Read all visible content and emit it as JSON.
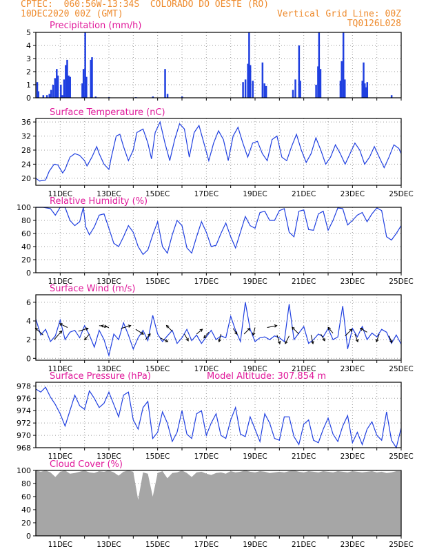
{
  "header": {
    "line1": "CPTEC:  060:56W-13:34S  COLORADO DO OESTE (RO)",
    "date": "10DEC2020 00Z (GMT)",
    "grid_note": "Vertical Grid Line: 00Z",
    "code": "TQ0126L028"
  },
  "colors": {
    "header": "#ee8a2c",
    "title": "#e0189a",
    "series": "#1f3fe0",
    "cloud": "#a6a6a6",
    "wind_arrow": "#000000",
    "grid": "#9a9a9a"
  },
  "x_tick_labels": [
    "11DEC",
    "13DEC",
    "15DEC",
    "17DEC",
    "19DEC",
    "21DEC",
    "23DEC",
    "25DEC"
  ],
  "chart_data": [
    {
      "id": "precip",
      "type": "bar",
      "title": "Precipitation (mm/h)",
      "ylim": [
        0,
        5
      ],
      "yticks": [
        0,
        1,
        2,
        3,
        4,
        5
      ],
      "grid": true,
      "x_unit": "days from 10DEC2020 00Z",
      "xlim": [
        0,
        15
      ],
      "points": [
        [
          0.05,
          1.2
        ],
        [
          0.1,
          0.5
        ],
        [
          0.3,
          0.2
        ],
        [
          0.45,
          0.2
        ],
        [
          0.55,
          0.3
        ],
        [
          0.62,
          0.6
        ],
        [
          0.7,
          1.0
        ],
        [
          0.78,
          1.5
        ],
        [
          0.85,
          2.2
        ],
        [
          0.9,
          1.7
        ],
        [
          1.02,
          1.0
        ],
        [
          1.08,
          0.2
        ],
        [
          1.15,
          1.4
        ],
        [
          1.22,
          2.5
        ],
        [
          1.28,
          2.9
        ],
        [
          1.34,
          1.7
        ],
        [
          1.4,
          1.6
        ],
        [
          1.9,
          1.1
        ],
        [
          1.95,
          2.2
        ],
        [
          2.02,
          5.0
        ],
        [
          2.07,
          1.6
        ],
        [
          2.25,
          2.9
        ],
        [
          2.3,
          3.1
        ],
        [
          2.45,
          0.1
        ],
        [
          3.0,
          0.05
        ],
        [
          4.1,
          0.05
        ],
        [
          4.8,
          0.1
        ],
        [
          5.3,
          2.2
        ],
        [
          5.4,
          0.3
        ],
        [
          6.0,
          0.1
        ],
        [
          8.5,
          1.2
        ],
        [
          8.6,
          1.4
        ],
        [
          8.7,
          2.6
        ],
        [
          8.75,
          5.0
        ],
        [
          8.8,
          2.5
        ],
        [
          8.9,
          1.3
        ],
        [
          9.3,
          2.7
        ],
        [
          9.38,
          1.1
        ],
        [
          9.45,
          0.9
        ],
        [
          10.55,
          0.6
        ],
        [
          10.65,
          1.4
        ],
        [
          10.8,
          4.0
        ],
        [
          10.85,
          1.3
        ],
        [
          11.5,
          1.0
        ],
        [
          11.58,
          2.4
        ],
        [
          11.62,
          5.0
        ],
        [
          11.68,
          2.2
        ],
        [
          12.5,
          1.3
        ],
        [
          12.55,
          2.8
        ],
        [
          12.62,
          5.0
        ],
        [
          12.68,
          1.4
        ],
        [
          13.4,
          1.3
        ],
        [
          13.45,
          2.7
        ],
        [
          13.5,
          1.1
        ],
        [
          13.55,
          0.8
        ],
        [
          13.6,
          1.2
        ],
        [
          14.6,
          0.2
        ]
      ]
    },
    {
      "id": "temp",
      "type": "line",
      "title": "Surface Temperature (nC)",
      "ylim": [
        18,
        37
      ],
      "yticks": [
        20,
        24,
        28,
        32,
        36
      ],
      "grid": true,
      "x": [
        0,
        0.15,
        0.4,
        0.55,
        0.75,
        0.9,
        1.1,
        1.2,
        1.4,
        1.6,
        1.8,
        2.0,
        2.1,
        2.3,
        2.5,
        2.6,
        2.8,
        3.0,
        3.1,
        3.3,
        3.45,
        3.6,
        3.8,
        4.0,
        4.15,
        4.4,
        4.6,
        4.75,
        4.9,
        5.1,
        5.3,
        5.5,
        5.7,
        5.9,
        6.1,
        6.3,
        6.5,
        6.7,
        6.9,
        7.1,
        7.3,
        7.5,
        7.7,
        7.9,
        8.1,
        8.3,
        8.5,
        8.7,
        8.9,
        9.1,
        9.3,
        9.5,
        9.7,
        9.9,
        10.1,
        10.3,
        10.5,
        10.7,
        10.9,
        11.1,
        11.3,
        11.5,
        11.7,
        11.9,
        12.1,
        12.3,
        12.5,
        12.7,
        12.9,
        13.1,
        13.3,
        13.5,
        13.7,
        13.9,
        14.1,
        14.3,
        14.5,
        14.7,
        14.9,
        15.0
      ],
      "values": [
        20,
        19.2,
        19.5,
        22,
        24,
        23.8,
        21.5,
        22.5,
        26,
        27,
        26.5,
        25,
        23.5,
        26,
        29,
        27,
        24,
        22.5,
        26,
        32,
        32.5,
        29,
        25,
        28,
        33,
        34,
        30,
        25.5,
        33,
        36,
        30,
        25,
        31,
        35.5,
        34,
        26,
        33,
        35,
        30,
        25,
        30,
        33.5,
        31,
        25,
        32,
        34.5,
        30,
        26,
        30,
        30.5,
        27,
        25,
        31,
        32,
        26,
        25,
        29,
        32.5,
        28,
        24.5,
        27,
        31.5,
        28,
        24,
        26,
        29.5,
        27,
        24,
        27,
        30,
        28,
        24,
        26,
        29,
        26,
        23,
        26,
        29.5,
        28.5,
        27
      ]
    },
    {
      "id": "rh",
      "type": "line",
      "title": "Relative Humidity (%)",
      "ylim": [
        0,
        100
      ],
      "yticks": [
        0,
        20,
        40,
        60,
        80,
        100
      ],
      "grid": true,
      "x": [
        0,
        0.3,
        0.6,
        0.8,
        1.0,
        1.2,
        1.4,
        1.6,
        1.8,
        1.95,
        2.05,
        2.2,
        2.4,
        2.6,
        2.8,
        3.0,
        3.2,
        3.4,
        3.6,
        3.8,
        4.0,
        4.2,
        4.4,
        4.6,
        4.8,
        5.0,
        5.2,
        5.4,
        5.6,
        5.8,
        6.0,
        6.2,
        6.4,
        6.6,
        6.8,
        7.0,
        7.2,
        7.4,
        7.6,
        7.8,
        8.0,
        8.2,
        8.4,
        8.6,
        8.8,
        9.0,
        9.2,
        9.4,
        9.6,
        9.8,
        10.0,
        10.2,
        10.4,
        10.6,
        10.8,
        11.0,
        11.2,
        11.4,
        11.6,
        11.8,
        12.0,
        12.2,
        12.4,
        12.6,
        12.8,
        13.0,
        13.2,
        13.4,
        13.6,
        13.8,
        14.0,
        14.2,
        14.4,
        14.6,
        14.8,
        15.0
      ],
      "values": [
        100,
        100,
        98,
        88,
        100,
        100,
        80,
        72,
        78,
        100,
        70,
        58,
        70,
        88,
        90,
        68,
        45,
        40,
        55,
        72,
        62,
        40,
        28,
        35,
        58,
        78,
        40,
        30,
        58,
        80,
        72,
        38,
        30,
        55,
        78,
        62,
        40,
        42,
        60,
        76,
        55,
        38,
        62,
        86,
        72,
        68,
        92,
        94,
        80,
        80,
        95,
        98,
        62,
        55,
        94,
        96,
        66,
        65,
        90,
        94,
        65,
        80,
        99,
        98,
        73,
        80,
        88,
        92,
        78,
        90,
        99,
        95,
        55,
        50,
        60,
        72
      ]
    },
    {
      "id": "wind",
      "type": "line",
      "title": "Surface Wind (m/s)",
      "ylim": [
        -0.2,
        6.8
      ],
      "yticks": [
        0,
        2,
        4,
        6
      ],
      "grid": true,
      "x": [
        0,
        0.2,
        0.4,
        0.6,
        0.8,
        1.0,
        1.2,
        1.4,
        1.6,
        1.8,
        2.0,
        2.2,
        2.4,
        2.6,
        2.8,
        3.0,
        3.2,
        3.4,
        3.6,
        3.8,
        4.0,
        4.2,
        4.4,
        4.6,
        4.8,
        5.0,
        5.2,
        5.4,
        5.6,
        5.8,
        6.0,
        6.2,
        6.4,
        6.6,
        6.8,
        7.0,
        7.2,
        7.4,
        7.6,
        7.8,
        8.0,
        8.2,
        8.4,
        8.6,
        8.8,
        9.0,
        9.2,
        9.4,
        9.6,
        9.8,
        10.0,
        10.2,
        10.4,
        10.6,
        10.8,
        11.0,
        11.2,
        11.4,
        11.6,
        11.8,
        12.0,
        12.2,
        12.4,
        12.6,
        12.8,
        13.0,
        13.2,
        13.4,
        13.6,
        13.8,
        14.0,
        14.2,
        14.4,
        14.6,
        14.8,
        15.0
      ],
      "values": [
        4.2,
        2.5,
        3.1,
        1.8,
        2.4,
        4.1,
        2.0,
        2.8,
        3.0,
        2.2,
        3.5,
        2.5,
        1.2,
        3.0,
        2.0,
        0.3,
        2.6,
        2.0,
        3.8,
        2.5,
        1.0,
        2.2,
        3.0,
        1.9,
        4.6,
        2.6,
        1.8,
        2.4,
        3.0,
        1.6,
        2.2,
        3.1,
        1.9,
        2.5,
        1.6,
        2.3,
        3.0,
        2.0,
        2.4,
        2.2,
        4.5,
        3.0,
        1.8,
        6.0,
        3.1,
        1.8,
        2.2,
        2.3,
        2.0,
        2.4,
        2.2,
        1.8,
        5.8,
        2.0,
        2.7,
        3.4,
        1.6,
        2.0,
        2.6,
        2.3,
        3.2,
        2.0,
        2.3,
        5.6,
        1.0,
        3.2,
        2.3,
        3.4,
        2.0,
        2.7,
        2.3,
        3.1,
        2.8,
        1.6,
        2.5,
        1.5
      ],
      "arrows": [
        [
          0.3,
          2.5,
          -0.8,
          0.7
        ],
        [
          0.75,
          2.0,
          0.8,
          0.9
        ],
        [
          1.3,
          3.3,
          -0.8,
          0.4
        ],
        [
          1.75,
          2.9,
          1.0,
          0.3
        ],
        [
          2.2,
          2.6,
          -0.5,
          -0.6
        ],
        [
          2.6,
          3.5,
          0.8,
          -0.1
        ],
        [
          3.0,
          3.3,
          -0.8,
          0.2
        ],
        [
          3.5,
          3.2,
          1.0,
          0.3
        ],
        [
          4.1,
          3.1,
          0.8,
          -0.5
        ],
        [
          4.5,
          2.0,
          0.5,
          0.6
        ],
        [
          5.1,
          2.2,
          0.8,
          -0.4
        ],
        [
          5.6,
          2.9,
          -0.6,
          0.6
        ],
        [
          6.1,
          2.6,
          0.4,
          -0.7
        ],
        [
          6.6,
          2.6,
          0.6,
          0.5
        ],
        [
          7.1,
          2.8,
          -0.5,
          -0.6
        ],
        [
          7.6,
          2.6,
          -0.2,
          -0.8
        ],
        [
          8.1,
          3.2,
          0.4,
          -0.6
        ],
        [
          8.55,
          2.6,
          0.6,
          0.6
        ],
        [
          9.0,
          3.3,
          -0.2,
          -0.8
        ],
        [
          9.5,
          3.3,
          1.0,
          0.2
        ],
        [
          9.9,
          2.5,
          0.3,
          -0.9
        ],
        [
          10.4,
          2.4,
          -0.4,
          -0.8
        ],
        [
          10.8,
          2.6,
          -0.7,
          0.7
        ],
        [
          11.3,
          2.5,
          0.2,
          -0.9
        ],
        [
          11.7,
          2.6,
          0.4,
          -0.7
        ],
        [
          12.2,
          2.7,
          -0.5,
          0.6
        ],
        [
          12.7,
          2.4,
          0.7,
          0.7
        ],
        [
          13.1,
          2.6,
          0.3,
          -0.8
        ],
        [
          13.6,
          2.8,
          -0.7,
          0.4
        ],
        [
          14.1,
          2.6,
          -0.3,
          -0.8
        ],
        [
          14.5,
          2.4,
          0.3,
          -0.7
        ]
      ]
    },
    {
      "id": "pressure",
      "type": "line",
      "title": "Surface Pressure (hPa)",
      "annotation": "Model Altitude: 307.854 m",
      "ylim": [
        968,
        978.6
      ],
      "yticks": [
        968,
        970,
        972,
        974,
        976,
        978
      ],
      "grid": true,
      "x": [
        0,
        0.2,
        0.4,
        0.6,
        0.8,
        1.0,
        1.2,
        1.4,
        1.6,
        1.8,
        2.0,
        2.2,
        2.4,
        2.6,
        2.8,
        3.0,
        3.2,
        3.4,
        3.6,
        3.8,
        4.0,
        4.2,
        4.4,
        4.6,
        4.8,
        5.0,
        5.2,
        5.4,
        5.6,
        5.8,
        6.0,
        6.2,
        6.4,
        6.6,
        6.8,
        7.0,
        7.2,
        7.4,
        7.6,
        7.8,
        8.0,
        8.2,
        8.4,
        8.6,
        8.8,
        9.0,
        9.2,
        9.4,
        9.6,
        9.8,
        10.0,
        10.2,
        10.4,
        10.6,
        10.8,
        11.0,
        11.2,
        11.4,
        11.6,
        11.8,
        12.0,
        12.2,
        12.4,
        12.6,
        12.8,
        13.0,
        13.2,
        13.4,
        13.6,
        13.8,
        14.0,
        14.2,
        14.4,
        14.6,
        14.8,
        15.0
      ],
      "values": [
        977.5,
        977.0,
        977.8,
        976.2,
        975.0,
        973.5,
        971.5,
        974.0,
        976.5,
        974.8,
        974.2,
        977.2,
        976.0,
        974.5,
        975.2,
        977.0,
        975.0,
        973.0,
        976.5,
        977.0,
        972.5,
        971.0,
        974.5,
        975.5,
        969.5,
        970.5,
        973.8,
        972.0,
        969.0,
        970.5,
        974.0,
        970.2,
        969.5,
        973.5,
        974.0,
        970.0,
        972.0,
        973.5,
        970.0,
        969.5,
        972.5,
        974.5,
        970.2,
        969.8,
        973.0,
        971.0,
        969.0,
        973.5,
        972.0,
        969.5,
        969.2,
        973.0,
        973.0,
        969.8,
        968.5,
        971.8,
        972.5,
        969.2,
        968.8,
        971.0,
        972.8,
        970.2,
        969.0,
        971.5,
        973.2,
        968.8,
        970.5,
        968.5,
        971.0,
        972.2,
        970.0,
        969.2,
        973.8,
        969.2,
        968.0,
        971.2
      ]
    },
    {
      "id": "cloud",
      "type": "area",
      "title": "Cloud Cover (%)",
      "ylim": [
        0,
        100
      ],
      "yticks": [
        0,
        20,
        40,
        60,
        80,
        100
      ],
      "grid": true,
      "x": [
        0,
        0.2,
        0.4,
        0.6,
        0.8,
        1.0,
        1.2,
        1.4,
        1.6,
        1.8,
        2.0,
        2.2,
        2.4,
        2.6,
        2.8,
        3.0,
        3.2,
        3.4,
        3.6,
        3.8,
        4.0,
        4.2,
        4.4,
        4.6,
        4.8,
        5.0,
        5.2,
        5.4,
        5.6,
        5.8,
        6.0,
        6.2,
        6.4,
        6.6,
        6.8,
        7.0,
        7.2,
        7.4,
        7.6,
        7.8,
        8.0,
        8.2,
        8.4,
        8.6,
        8.8,
        9.0,
        9.2,
        9.4,
        9.6,
        9.8,
        10.0,
        10.2,
        10.4,
        10.6,
        10.8,
        11.0,
        11.2,
        11.4,
        11.6,
        11.8,
        12.0,
        12.2,
        12.4,
        12.6,
        12.8,
        13.0,
        13.2,
        13.4,
        13.6,
        13.8,
        14.0,
        14.2,
        14.4,
        14.6,
        14.8,
        15.0
      ],
      "values": [
        100,
        98,
        100,
        97,
        90,
        98,
        100,
        95,
        96,
        98,
        100,
        97,
        96,
        99,
        98,
        100,
        97,
        92,
        98,
        100,
        98,
        55,
        97,
        95,
        60,
        96,
        99,
        88,
        96,
        97,
        100,
        96,
        90,
        97,
        98,
        95,
        93,
        96,
        97,
        95,
        99,
        97,
        98,
        100,
        98,
        97,
        99,
        98,
        96,
        97,
        98,
        97,
        99,
        100,
        98,
        97,
        99,
        98,
        97,
        99,
        98,
        97,
        99,
        98,
        97,
        99,
        98,
        97,
        98,
        99,
        97,
        98,
        96,
        97,
        99,
        99
      ]
    }
  ]
}
